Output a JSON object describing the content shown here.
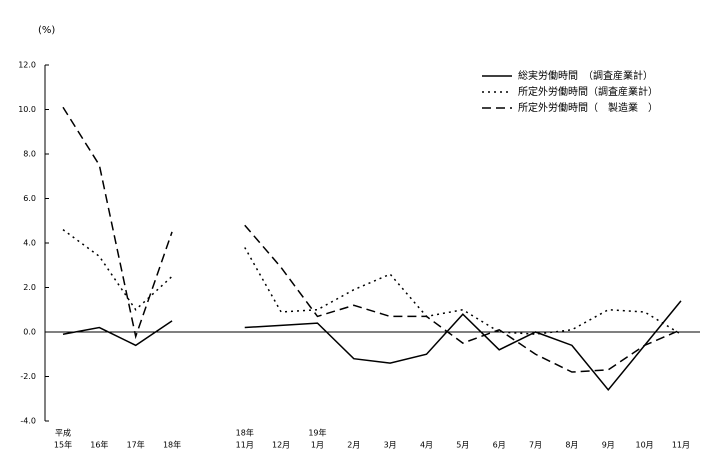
{
  "chart_data": {
    "type": "line",
    "y_unit_label": "(%)",
    "categories": [
      "15年",
      "16年",
      "17年",
      "18年",
      null,
      "11月",
      "12月",
      "1月",
      "2月",
      "3月",
      "4月",
      "5月",
      "6月",
      "7月",
      "8月",
      "9月",
      "10月",
      "11月"
    ],
    "category_year_labels": [
      "平成",
      null,
      null,
      null,
      null,
      "18年",
      null,
      "19年",
      null,
      null,
      null,
      null,
      null,
      null,
      null,
      null,
      null,
      null
    ],
    "series": [
      {
        "name": "総実労働時間　（調査産業計）",
        "color": "#000000",
        "dash": "solid",
        "values": [
          -0.1,
          0.2,
          -0.6,
          0.5,
          null,
          0.2,
          0.3,
          0.4,
          -1.2,
          -1.4,
          -1.0,
          0.8,
          -0.8,
          0.0,
          -0.6,
          -2.6,
          -0.6,
          1.4
        ]
      },
      {
        "name": "所定外労働時間（調査産業計）",
        "color": "#000000",
        "dash": "dotted",
        "values": [
          4.6,
          3.4,
          1.0,
          2.5,
          null,
          3.8,
          0.9,
          1.0,
          1.9,
          2.6,
          0.7,
          1.0,
          0.0,
          -0.1,
          0.1,
          1.0,
          0.9,
          -0.1
        ]
      },
      {
        "name": "所定外労働時間（　製造業　）",
        "color": "#000000",
        "dash": "dashed",
        "values": [
          10.1,
          7.5,
          -0.2,
          4.5,
          null,
          4.8,
          2.9,
          0.7,
          1.2,
          0.7,
          0.7,
          -0.5,
          0.1,
          -1.0,
          -1.8,
          -1.7,
          -0.6,
          0.1
        ]
      }
    ],
    "ylim": [
      -4.0,
      12.0
    ],
    "yticks": [
      {
        "value": 12,
        "label": "12.0"
      },
      {
        "value": 10,
        "label": "10.0"
      },
      {
        "value": 8,
        "label": "8.0"
      },
      {
        "value": 6,
        "label": "6.0"
      },
      {
        "value": 4,
        "label": "4.0"
      },
      {
        "value": 2,
        "label": "2.0"
      },
      {
        "value": 0,
        "label": "0.0"
      },
      {
        "value": -2,
        "label": "-2.0"
      },
      {
        "value": -4,
        "label": "-4.0"
      }
    ],
    "legend": "top-right",
    "grid": false
  }
}
